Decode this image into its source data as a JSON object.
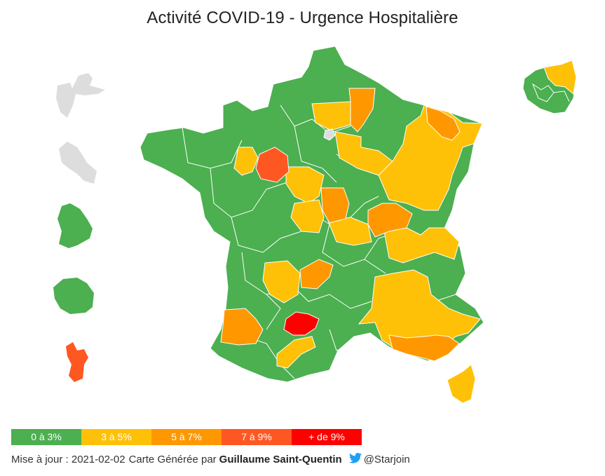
{
  "header": {
    "title": "Activité COVID-19 - Urgence Hospitalière"
  },
  "colors": {
    "green": "#4caf50",
    "yellow": "#ffc107",
    "orange": "#ff9800",
    "red_orange": "#ff5722",
    "red": "#ff0000",
    "grey": "#dddddd",
    "twitter": "#1da1f2"
  },
  "legend": {
    "items": [
      {
        "label": "0 à 3%",
        "color": "#4caf50"
      },
      {
        "label": "3 à 5%",
        "color": "#ffc107"
      },
      {
        "label": "5 à 7%",
        "color": "#ff9800"
      },
      {
        "label": "7 à 9%",
        "color": "#ff5722"
      },
      {
        "label": "+ de 9%",
        "color": "#ff0000"
      }
    ]
  },
  "footer": {
    "update_text": "Mise à jour : 2021-02-02",
    "generated_text": "Carte Générée par",
    "author": "Guillaume Saint-Quentin",
    "twitter_handle": "@Starjoin",
    "twitter_icon": "twitter-bird-icon"
  }
}
